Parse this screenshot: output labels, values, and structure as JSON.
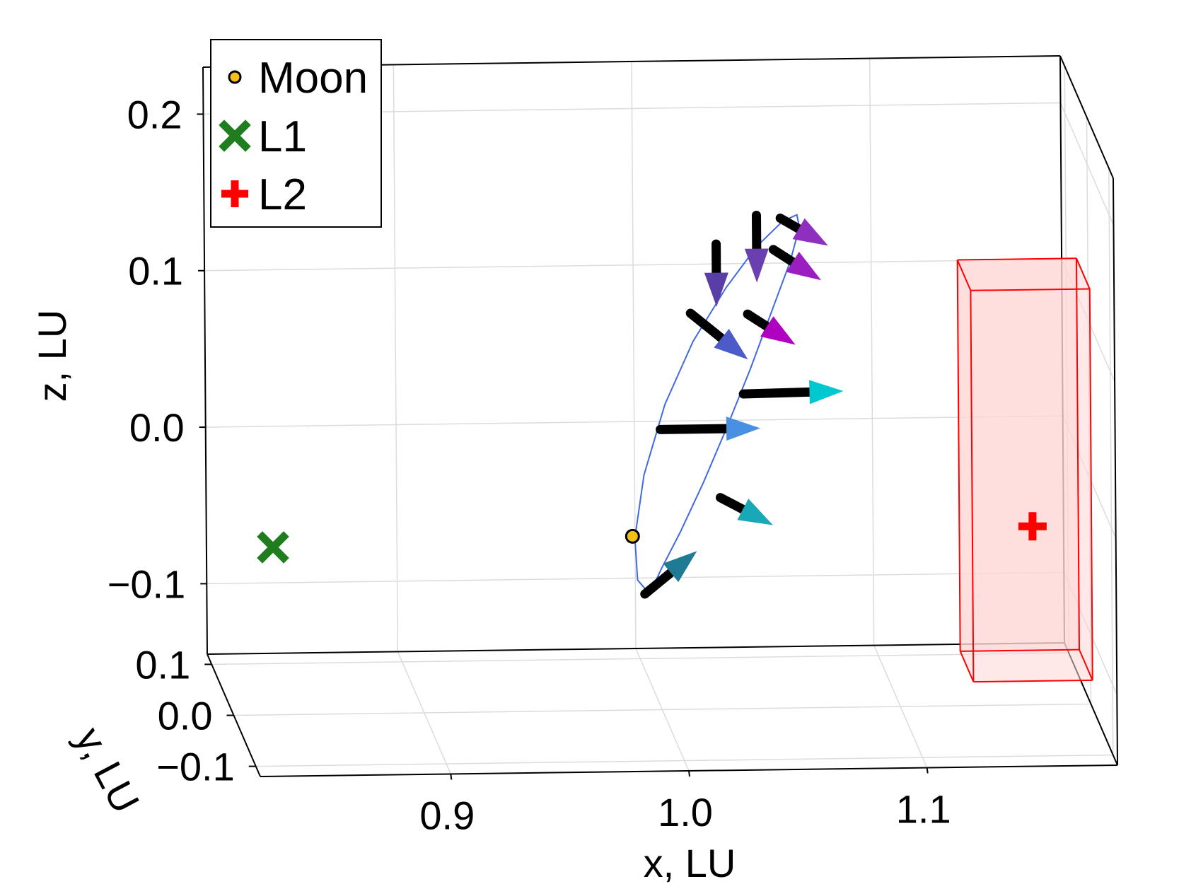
{
  "chart_data": {
    "type": "scatter",
    "projection": "3d",
    "xlabel": "x, LU",
    "ylabel": "y, LU",
    "zlabel": "z, LU",
    "xlim": [
      0.82,
      1.18
    ],
    "ylim": [
      -0.12,
      0.12
    ],
    "zlim": [
      -0.145,
      0.23
    ],
    "xticks": [
      "0.9",
      "1.0",
      "1.1"
    ],
    "yticks": [
      "0.1",
      "0.0",
      "−0.1"
    ],
    "zticks": [
      "0.2",
      "0.1",
      "0.0",
      "−0.1"
    ],
    "grid": true,
    "legend_position": "top-left",
    "legend": [
      {
        "label": "Moon",
        "marker": "circle",
        "color": "#f2c019"
      },
      {
        "label": "L1",
        "marker": "x",
        "color": "#1f7d1f"
      },
      {
        "label": "L2",
        "marker": "cross",
        "color": "#ff0000"
      }
    ],
    "points": [
      {
        "name": "Moon",
        "x": 0.988,
        "y": 0.0,
        "z": -0.034
      },
      {
        "name": "L1",
        "x": 0.837,
        "y": 0.0,
        "z": -0.038
      },
      {
        "name": "L2",
        "x": 1.156,
        "y": 0.0,
        "z": -0.031
      }
    ],
    "orbit": {
      "color": "#4169e1",
      "center": [
        1.022,
        0.0,
        0.049
      ],
      "path": [
        [
          0.995,
          -0.071
        ],
        [
          1.0,
          -0.055
        ],
        [
          1.008,
          -0.032
        ],
        [
          1.018,
          0.0
        ],
        [
          1.028,
          0.035
        ],
        [
          1.038,
          0.072
        ],
        [
          1.047,
          0.108
        ],
        [
          1.055,
          0.14
        ],
        [
          1.059,
          0.162
        ],
        [
          1.058,
          0.17
        ],
        [
          1.052,
          0.166
        ],
        [
          1.041,
          0.15
        ],
        [
          1.028,
          0.124
        ],
        [
          1.014,
          0.09
        ],
        [
          1.002,
          0.05
        ],
        [
          0.993,
          0.005
        ],
        [
          0.989,
          -0.035
        ],
        [
          0.99,
          -0.062
        ],
        [
          0.995,
          -0.071
        ]
      ]
    },
    "vectors": [
      {
        "x": 0.993,
        "z": -0.071,
        "dx": 0.022,
        "dz": 0.027,
        "color": "#1f7a94"
      },
      {
        "x": 1.0,
        "z": 0.034,
        "dx": 0.042,
        "dz": 0.0,
        "color": "#4a90e2"
      },
      {
        "x": 1.024,
        "z": 0.152,
        "dx": 0.0,
        "dz": -0.04,
        "color": "#5a3ea8"
      },
      {
        "x": 1.035,
        "z": 0.056,
        "dx": 0.042,
        "dz": 0.001,
        "color": "#00c8d0"
      },
      {
        "x": 1.025,
        "z": -0.01,
        "dx": 0.022,
        "dz": -0.018,
        "color": "#19a8b8"
      },
      {
        "x": 1.013,
        "z": 0.108,
        "dx": 0.024,
        "dz": -0.03,
        "color": "#4b5cc8"
      },
      {
        "x": 1.041,
        "z": 0.17,
        "dx": 0.0,
        "dz": -0.043,
        "color": "#6a3fb0"
      },
      {
        "x": 1.051,
        "z": 0.168,
        "dx": 0.02,
        "dz": -0.018,
        "color": "#8e2fc0"
      },
      {
        "x": 1.048,
        "z": 0.148,
        "dx": 0.02,
        "dz": -0.02,
        "color": "#9b1fc0"
      },
      {
        "x": 1.037,
        "z": 0.107,
        "dx": 0.02,
        "dz": -0.02,
        "color": "#b000c0"
      }
    ],
    "box": {
      "color": "#ff0000",
      "fill": "#ffd6d6",
      "x": [
        1.128,
        1.178
      ],
      "y": [
        -0.03,
        0.03
      ],
      "z": [
        -0.12,
        0.13
      ]
    }
  }
}
